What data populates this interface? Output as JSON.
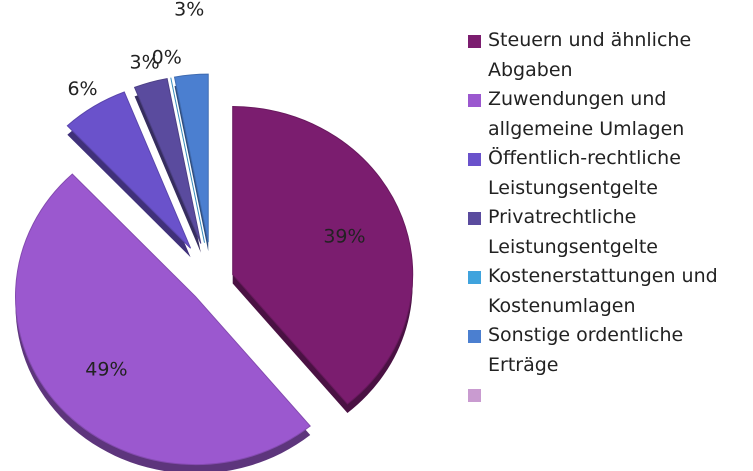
{
  "chart_data": {
    "type": "pie",
    "categories": [
      "Steuern und ähnliche Abgaben",
      "Zuwendungen und allgemeine Umlagen",
      "Öffentlich-rechtliche Leistungsentgelte",
      "Privatrechtliche Leistungsentgelte",
      "Kostenerstattungen und Kostenumlagen",
      "Sonstige ordentliche Erträge",
      null
    ],
    "values": [
      39,
      49,
      6,
      3,
      0,
      3,
      null
    ],
    "value_labels": [
      "39%",
      "49%",
      "6%",
      "3%",
      "0%",
      "3%",
      null
    ],
    "colors": [
      "#7b1d6f",
      "#9b58cf",
      "#6a52cb",
      "#5a4b9e",
      "#3fa3dd",
      "#4b7fd0",
      "#c99bd0"
    ],
    "legend": "right"
  }
}
